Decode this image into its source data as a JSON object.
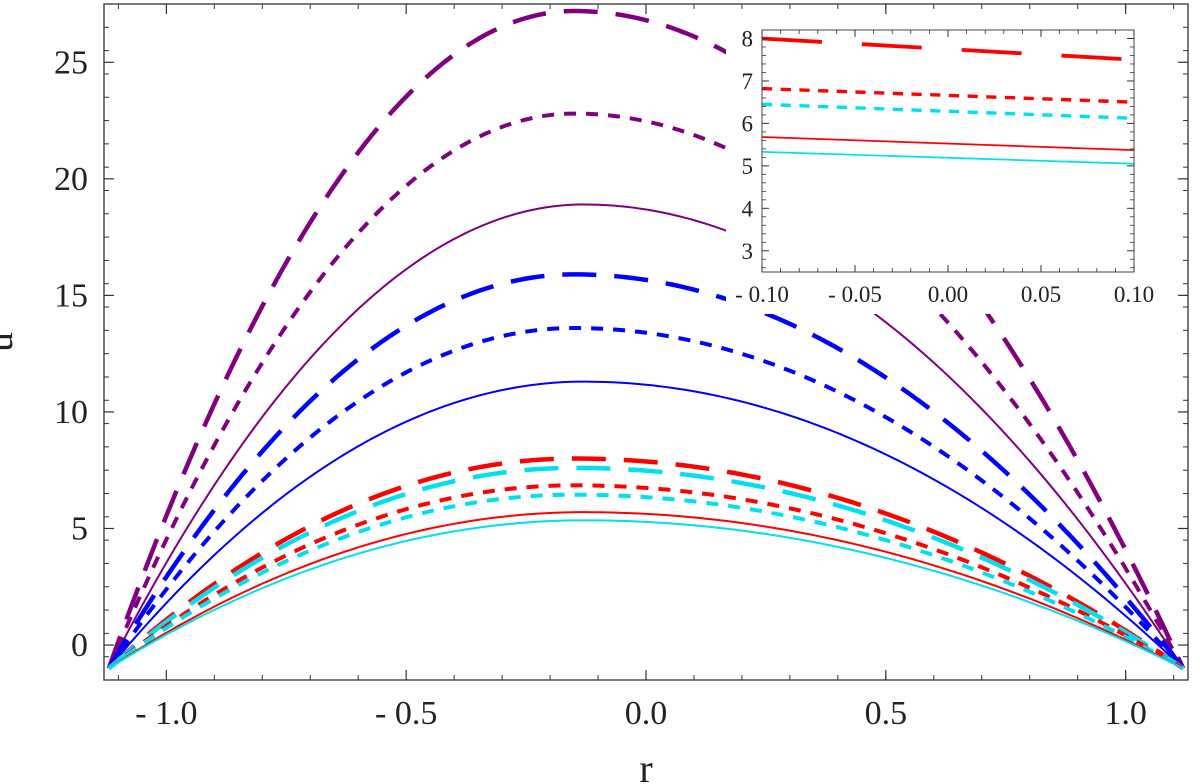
{
  "chart_data": [
    {
      "type": "line",
      "title": "",
      "xlabel": "r",
      "ylabel": "u",
      "xlim": [
        -1.13,
        1.13
      ],
      "ylim": [
        -1.5,
        27.5
      ],
      "xticks": [
        -1.0,
        -0.5,
        0.0,
        0.5,
        1.0
      ],
      "xtick_labels": [
        "- 1.0",
        "- 0.5",
        "0.0",
        "0.5",
        "1.0"
      ],
      "yticks": [
        0,
        5,
        10,
        15,
        20,
        25
      ],
      "ytick_labels": [
        "0",
        "5",
        "10",
        "15",
        "20",
        "25"
      ],
      "grid": false,
      "curve_x_range": [
        -1.12,
        1.12
      ],
      "series": [
        {
          "color": "#800080",
          "style": "longdash",
          "peak_x": -0.15,
          "peak_y": 27.2,
          "end_y": -1.0
        },
        {
          "color": "#800080",
          "style": "shortdash",
          "peak_x": -0.15,
          "peak_y": 22.8,
          "end_y": -1.0
        },
        {
          "color": "#800080",
          "style": "solid",
          "peak_x": -0.13,
          "peak_y": 18.9,
          "end_y": -1.0
        },
        {
          "color": "#0000ff",
          "style": "longdash",
          "peak_x": -0.15,
          "peak_y": 15.9,
          "end_y": -1.0
        },
        {
          "color": "#0000ff",
          "style": "shortdash",
          "peak_x": -0.15,
          "peak_y": 13.6,
          "end_y": -1.0
        },
        {
          "color": "#0000ff",
          "style": "solid",
          "peak_x": -0.13,
          "peak_y": 11.3,
          "end_y": -1.0
        },
        {
          "color": "#ff0000",
          "style": "longdash",
          "peak_x": -0.15,
          "peak_y": 8.0,
          "end_y": -1.0
        },
        {
          "color": "#00e0f0",
          "style": "longdash",
          "peak_x": -0.15,
          "peak_y": 7.6,
          "end_y": -1.0
        },
        {
          "color": "#ff0000",
          "style": "shortdash",
          "peak_x": -0.15,
          "peak_y": 6.85,
          "end_y": -1.0
        },
        {
          "color": "#00e0f0",
          "style": "shortdash",
          "peak_x": -0.15,
          "peak_y": 6.45,
          "end_y": -1.0
        },
        {
          "color": "#ff0000",
          "style": "solid",
          "peak_x": -0.13,
          "peak_y": 5.7,
          "end_y": -1.0
        },
        {
          "color": "#00e0f0",
          "style": "solid",
          "peak_x": -0.13,
          "peak_y": 5.35,
          "end_y": -1.0
        }
      ]
    },
    {
      "type": "line",
      "title": "",
      "inset": true,
      "xlim": [
        -0.1,
        0.1
      ],
      "ylim": [
        2.5,
        8.2
      ],
      "xticks": [
        -0.1,
        -0.05,
        0.0,
        0.05,
        0.1
      ],
      "xtick_labels": [
        "- 0.10",
        "- 0.05",
        "0.00",
        "0.05",
        "0.10"
      ],
      "yticks": [
        3,
        4,
        5,
        6,
        7,
        8
      ],
      "ytick_labels": [
        "3",
        "4",
        "5",
        "6",
        "7",
        "8"
      ],
      "grid": false,
      "series": [
        {
          "color": "#ff0000",
          "style": "longdash",
          "y_start": 8.0,
          "y_end": 7.5
        },
        {
          "color": "#ff0000",
          "style": "shortdash",
          "y_start": 6.82,
          "y_end": 6.5
        },
        {
          "color": "#00e0f0",
          "style": "shortdash",
          "y_start": 6.45,
          "y_end": 6.12
        },
        {
          "color": "#ff0000",
          "style": "solid",
          "y_start": 5.68,
          "y_end": 5.37
        },
        {
          "color": "#00e0f0",
          "style": "solid",
          "y_start": 5.33,
          "y_end": 5.05
        }
      ]
    }
  ]
}
